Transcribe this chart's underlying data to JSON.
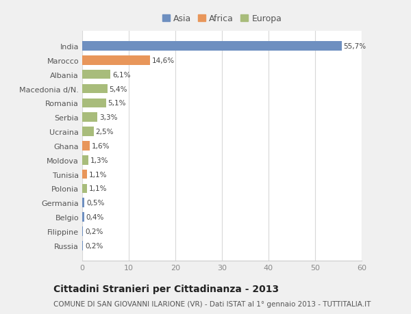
{
  "categories": [
    "Russia",
    "Filippine",
    "Belgio",
    "Germania",
    "Polonia",
    "Tunisia",
    "Moldova",
    "Ghana",
    "Ucraina",
    "Serbia",
    "Romania",
    "Macedonia d/N.",
    "Albania",
    "Marocco",
    "India"
  ],
  "values": [
    0.2,
    0.2,
    0.4,
    0.5,
    1.1,
    1.1,
    1.3,
    1.6,
    2.5,
    3.3,
    5.1,
    5.4,
    6.1,
    14.6,
    55.7
  ],
  "labels": [
    "0,2%",
    "0,2%",
    "0,4%",
    "0,5%",
    "1,1%",
    "1,1%",
    "1,3%",
    "1,6%",
    "2,5%",
    "3,3%",
    "5,1%",
    "5,4%",
    "6,1%",
    "14,6%",
    "55,7%"
  ],
  "colors": [
    "#6e8fc0",
    "#6e8fc0",
    "#6e8fc0",
    "#6e8fc0",
    "#a8bc7b",
    "#e8965a",
    "#a8bc7b",
    "#e8965a",
    "#a8bc7b",
    "#a8bc7b",
    "#a8bc7b",
    "#a8bc7b",
    "#a8bc7b",
    "#e8965a",
    "#6e8fc0"
  ],
  "legend_labels": [
    "Asia",
    "Africa",
    "Europa"
  ],
  "legend_colors": [
    "#6e8fc0",
    "#e8965a",
    "#a8bc7b"
  ],
  "xlim": [
    0,
    60
  ],
  "xticks": [
    0,
    10,
    20,
    30,
    40,
    50,
    60
  ],
  "title": "Cittadini Stranieri per Cittadinanza - 2013",
  "subtitle": "COMUNE DI SAN GIOVANNI ILARIONE (VR) - Dati ISTAT al 1° gennaio 2013 - TUTTITALIA.IT",
  "bg_color": "#f0f0f0",
  "plot_bg_color": "#ffffff",
  "title_fontsize": 10,
  "subtitle_fontsize": 7.5,
  "label_fontsize": 7.5,
  "tick_fontsize": 8,
  "legend_fontsize": 9
}
